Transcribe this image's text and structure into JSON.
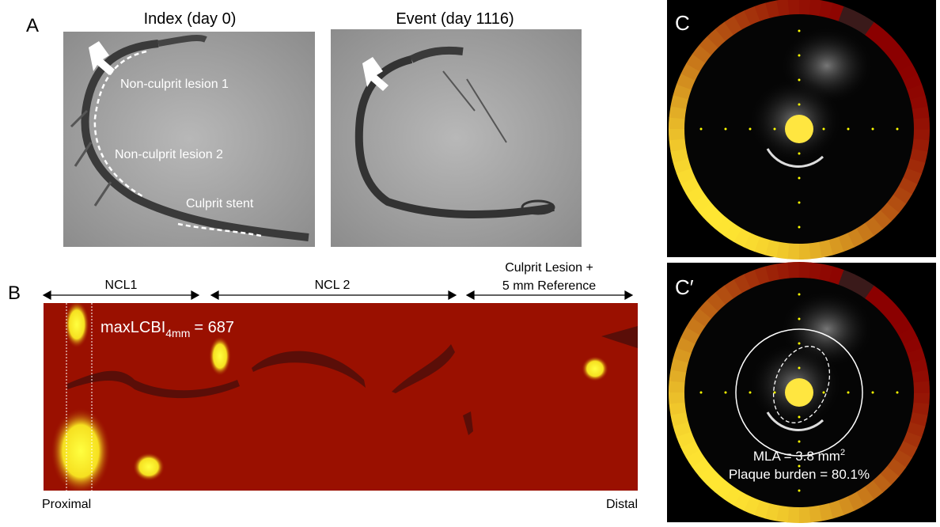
{
  "panel_a": {
    "label": "A",
    "index": {
      "title": "Index (day 0)",
      "annotations": [
        "Non-culprit lesion 1",
        "Non-culprit lesion 2",
        "Culprit stent"
      ]
    },
    "event": {
      "title": "Event (day 1116)"
    }
  },
  "panel_b": {
    "label": "B",
    "segments": [
      "NCL1",
      "NCL 2"
    ],
    "culprit_segment": [
      "Culprit Lesion +",
      "5 mm Reference"
    ],
    "max_lcbi": {
      "text": "maxLCBI",
      "subscript": "4mm",
      "value_text": "= 687"
    },
    "proximal": "Proximal",
    "distal": "Distal"
  },
  "panel_c": {
    "label": "C"
  },
  "panel_c_prime": {
    "label": "C′",
    "mla": {
      "text": "MLA = 3.8 mm",
      "superscript": "2"
    },
    "plaque_burden": "Plaque burden = 80.1%"
  }
}
